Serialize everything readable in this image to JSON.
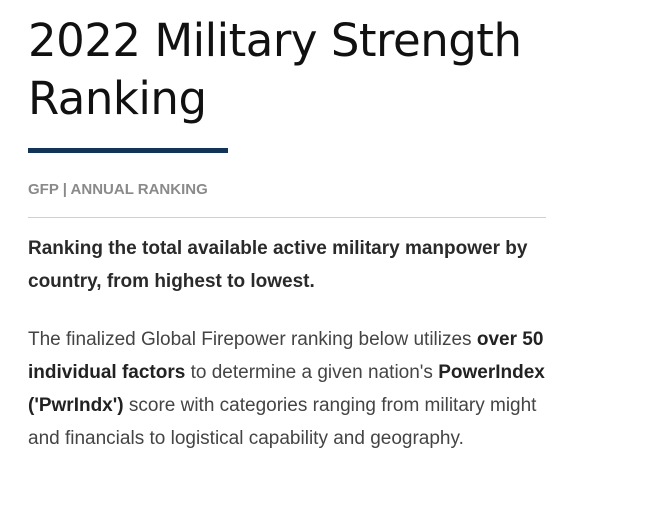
{
  "header": {
    "title_line1": "2022 Military Strength",
    "title_line2": "Ranking"
  },
  "kicker": "GFP | ANNUAL RANKING",
  "lead": "Ranking the total available active military manpower by country, from highest to lowest.",
  "body": {
    "part1": "The finalized Global Firepower ranking below utilizes ",
    "bold1": "over 50 individual factors",
    "part2": " to determine a given nation's ",
    "bold2": "PowerIndex ('PwrIndx')",
    "part3": " score with categories ranging from military might and financials to logistical capability and geography."
  },
  "colors": {
    "title_rule": "#123457",
    "kicker": "#8a8a8a"
  }
}
